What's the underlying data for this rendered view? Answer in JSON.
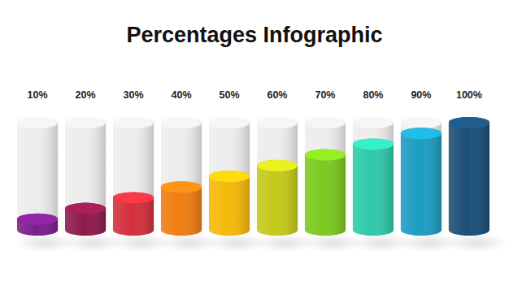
{
  "chart_data": {
    "type": "bar",
    "title": "Percentages Infographic",
    "categories": [
      null,
      null,
      null,
      null,
      null,
      null,
      null,
      null,
      null,
      null
    ],
    "values": [
      10,
      20,
      30,
      40,
      50,
      60,
      70,
      80,
      90,
      100
    ],
    "value_labels": [
      "10%",
      "20%",
      "30%",
      "40%",
      "50%",
      "60%",
      "70%",
      "80%",
      "90%",
      "100%"
    ],
    "colors": [
      "#7b1f8c",
      "#8e1a4c",
      "#d3303c",
      "#f07d12",
      "#f5b90a",
      "#c5c91a",
      "#7cc81f",
      "#2ec9a9",
      "#1c9dc2",
      "#1b4e78"
    ],
    "ylim": [
      0,
      100
    ],
    "data_labels": true,
    "tick_labels": false
  }
}
